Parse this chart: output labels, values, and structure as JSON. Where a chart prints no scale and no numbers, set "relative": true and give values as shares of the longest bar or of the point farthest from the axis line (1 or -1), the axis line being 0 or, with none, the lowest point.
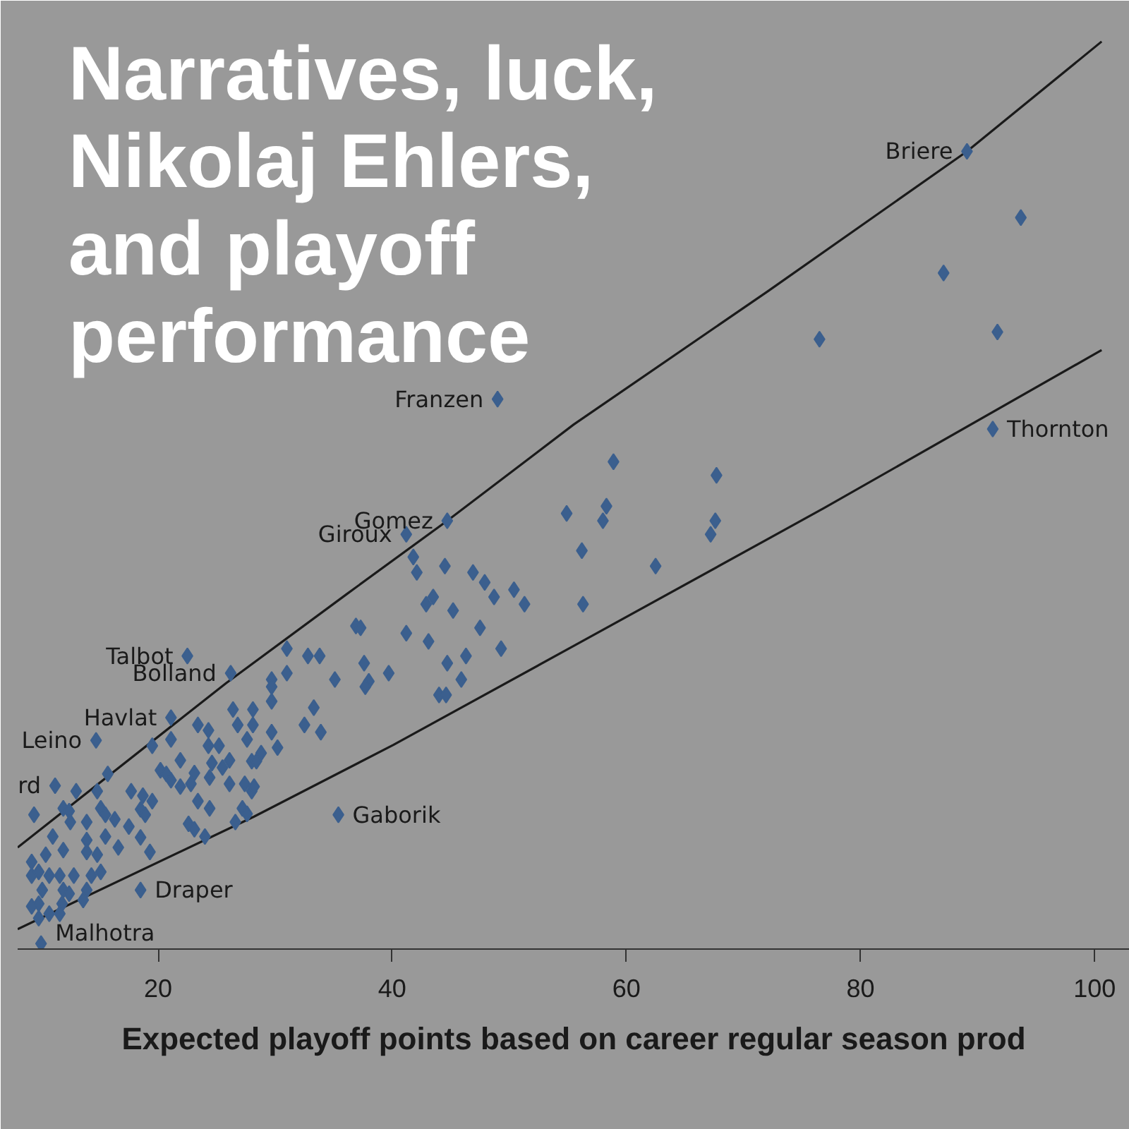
{
  "chart_data": {
    "type": "scatter",
    "title": "Narratives, luck, Nikolaj Ehlers, and playoff performance",
    "xlabel": "Expected playoff points based on career regular season prod",
    "xlim": [
      8,
      103
    ],
    "xticks": [
      20,
      40,
      60,
      80,
      100
    ],
    "relative": true,
    "tick_labels": "x",
    "series": [
      {
        "type": "line",
        "color": "#1a1a1a",
        "x": [
          8.0,
          25.8,
          36.1,
          44.7,
          55.5,
          72.1,
          89.1,
          100.6
        ],
        "values": [
          0.112,
          0.293,
          0.391,
          0.472,
          0.578,
          0.725,
          0.879,
          1.0
        ]
      },
      {
        "type": "line",
        "color": "#1a1a1a",
        "x": [
          8.0,
          28.2,
          40.1,
          55.5,
          76.9,
          100.6
        ],
        "values": [
          0.022,
          0.146,
          0.225,
          0.334,
          0.486,
          0.66
        ]
      },
      {
        "marker": "diamond",
        "color": "#3b5f8e",
        "x": [
          89.1,
          91.3,
          49.0,
          44.7,
          41.2,
          22.5,
          26.2,
          21.1,
          14.7,
          11.2,
          35.4,
          18.5,
          10.0,
          93.7,
          87.1,
          76.5,
          91.7,
          58.9,
          67.7,
          54.9,
          58.3,
          58.0,
          56.2,
          62.5,
          67.6,
          67.2,
          56.3,
          41.8,
          42.1,
          44.5,
          46.9,
          47.9,
          48.7,
          50.4,
          51.3,
          42.9,
          43.5,
          45.2,
          36.9,
          37.3,
          41.2,
          43.1,
          47.5,
          49.3,
          46.3,
          44.7,
          45.9,
          44.0,
          44.6,
          39.7,
          37.6,
          38.0,
          37.7,
          35.1,
          32.8,
          33.8,
          31.0,
          31.0,
          29.7,
          29.7,
          29.7,
          33.3,
          26.4,
          28.1,
          26.8,
          28.1,
          27.6,
          29.7,
          32.5,
          33.9,
          30.2,
          28.8,
          28.0,
          28.4,
          27.4,
          28.0,
          28.2,
          27.2,
          27.6,
          23.4,
          24.3,
          21.1,
          19.5,
          24.3,
          25.2,
          21.9,
          26.1,
          24.6,
          25.5,
          20.2,
          20.7,
          21.1,
          21.9,
          23.1,
          22.8,
          24.4,
          26.1,
          15.7,
          17.7,
          18.7,
          19.5,
          14.8,
          13.0,
          11.9,
          12.4,
          15.1,
          15.5,
          23.4,
          24.4,
          18.5,
          18.9,
          16.3,
          13.9,
          12.5,
          17.5,
          22.6,
          23.1,
          26.6,
          11.0,
          13.9,
          15.5,
          18.5,
          19.3,
          24.0,
          9.2,
          10.4,
          11.9,
          13.9,
          14.8,
          16.6,
          9.2,
          9.8,
          10.7,
          11.6,
          12.8,
          14.3,
          15.1,
          10.1,
          11.9,
          12.4,
          13.9,
          9.8,
          11.8,
          10.7,
          11.6,
          9.8,
          9.2,
          13.6,
          9.4
        ],
        "values": [
          0.879,
          0.573,
          0.606,
          0.472,
          0.457,
          0.323,
          0.304,
          0.255,
          0.23,
          0.18,
          0.148,
          0.065,
          0.006,
          0.806,
          0.745,
          0.672,
          0.68,
          0.537,
          0.522,
          0.48,
          0.488,
          0.472,
          0.439,
          0.422,
          0.472,
          0.457,
          0.38,
          0.432,
          0.415,
          0.422,
          0.415,
          0.404,
          0.388,
          0.396,
          0.38,
          0.38,
          0.388,
          0.373,
          0.356,
          0.354,
          0.348,
          0.339,
          0.354,
          0.331,
          0.323,
          0.315,
          0.297,
          0.28,
          0.28,
          0.304,
          0.315,
          0.295,
          0.289,
          0.297,
          0.323,
          0.323,
          0.331,
          0.304,
          0.297,
          0.289,
          0.273,
          0.266,
          0.264,
          0.264,
          0.247,
          0.247,
          0.231,
          0.239,
          0.247,
          0.239,
          0.222,
          0.216,
          0.207,
          0.207,
          0.182,
          0.174,
          0.179,
          0.155,
          0.149,
          0.247,
          0.241,
          0.231,
          0.224,
          0.224,
          0.224,
          0.208,
          0.208,
          0.205,
          0.2,
          0.197,
          0.193,
          0.186,
          0.179,
          0.194,
          0.182,
          0.189,
          0.182,
          0.193,
          0.174,
          0.169,
          0.163,
          0.174,
          0.174,
          0.155,
          0.152,
          0.155,
          0.148,
          0.163,
          0.155,
          0.154,
          0.148,
          0.143,
          0.14,
          0.14,
          0.135,
          0.138,
          0.132,
          0.14,
          0.124,
          0.12,
          0.124,
          0.123,
          0.107,
          0.124,
          0.096,
          0.104,
          0.109,
          0.107,
          0.104,
          0.112,
          0.081,
          0.085,
          0.081,
          0.081,
          0.081,
          0.081,
          0.085,
          0.065,
          0.065,
          0.061,
          0.065,
          0.05,
          0.05,
          0.039,
          0.039,
          0.034,
          0.047,
          0.054,
          0.148
        ]
      }
    ],
    "annotations": [
      {
        "text": "Briere",
        "x": 89.1,
        "y": 0.879
      },
      {
        "text": "Thornton",
        "x": 91.3,
        "y": 0.573
      },
      {
        "text": "Franzen",
        "x": 49.0,
        "y": 0.606
      },
      {
        "text": "Gomez",
        "x": 44.7,
        "y": 0.472
      },
      {
        "text": "Giroux",
        "x": 41.2,
        "y": 0.457
      },
      {
        "text": "Talbot",
        "x": 22.5,
        "y": 0.323
      },
      {
        "text": "Bolland",
        "x": 26.2,
        "y": 0.304
      },
      {
        "text": "Havlat",
        "x": 21.1,
        "y": 0.255
      },
      {
        "text": "Leino",
        "x": 14.7,
        "y": 0.23
      },
      {
        "text": "rd",
        "x": 11.2,
        "y": 0.18
      },
      {
        "text": "Gaborik",
        "x": 35.4,
        "y": 0.148
      },
      {
        "text": "Draper",
        "x": 18.5,
        "y": 0.065
      },
      {
        "text": "Malhotra",
        "x": 10.0,
        "y": 0.006
      }
    ]
  }
}
